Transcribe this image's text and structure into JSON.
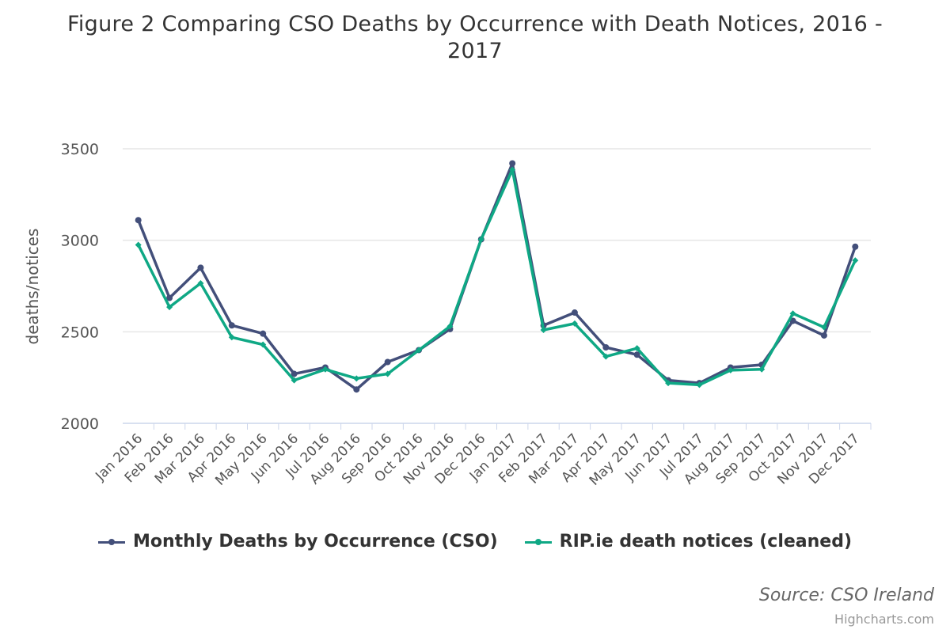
{
  "chart_data": {
    "type": "line",
    "title": "Figure 2 Comparing CSO Deaths by Occurrence with Death Notices, 2016 - 2017",
    "ylabel": "deaths/notices",
    "xlabel": "",
    "ylim": [
      2000,
      3500
    ],
    "yticks": [
      "2000",
      "2500",
      "3000",
      "3500"
    ],
    "grid": true,
    "legend_position": "bottom",
    "categories": [
      "Jan 2016",
      "Feb 2016",
      "Mar 2016",
      "Apr 2016",
      "May 2016",
      "Jun 2016",
      "Jul 2016",
      "Aug 2016",
      "Sep 2016",
      "Oct 2016",
      "Nov 2016",
      "Dec 2016",
      "Jan 2017",
      "Feb 2017",
      "Mar 2017",
      "Apr 2017",
      "May 2017",
      "Jun 2017",
      "Jul 2017",
      "Aug 2017",
      "Sep 2017",
      "Oct 2017",
      "Nov 2017",
      "Dec 2017"
    ],
    "series": [
      {
        "name": "Monthly Deaths by Occurrence (CSO)",
        "color": "#434f7a",
        "values": [
          3110,
          2685,
          2850,
          2535,
          2490,
          2270,
          2305,
          2185,
          2335,
          2400,
          2515,
          3005,
          3420,
          2535,
          2605,
          2415,
          2375,
          2235,
          2220,
          2305,
          2320,
          2560,
          2480,
          2965
        ]
      },
      {
        "name": "RIP.ie death notices (cleaned)",
        "color": "#0fa885",
        "values": [
          2975,
          2635,
          2765,
          2470,
          2430,
          2235,
          2295,
          2245,
          2270,
          2400,
          2530,
          3005,
          3385,
          2510,
          2545,
          2365,
          2410,
          2220,
          2210,
          2290,
          2295,
          2600,
          2525,
          2890
        ]
      }
    ]
  },
  "source_note": "Source: CSO Ireland",
  "credits": "Highcharts.com"
}
